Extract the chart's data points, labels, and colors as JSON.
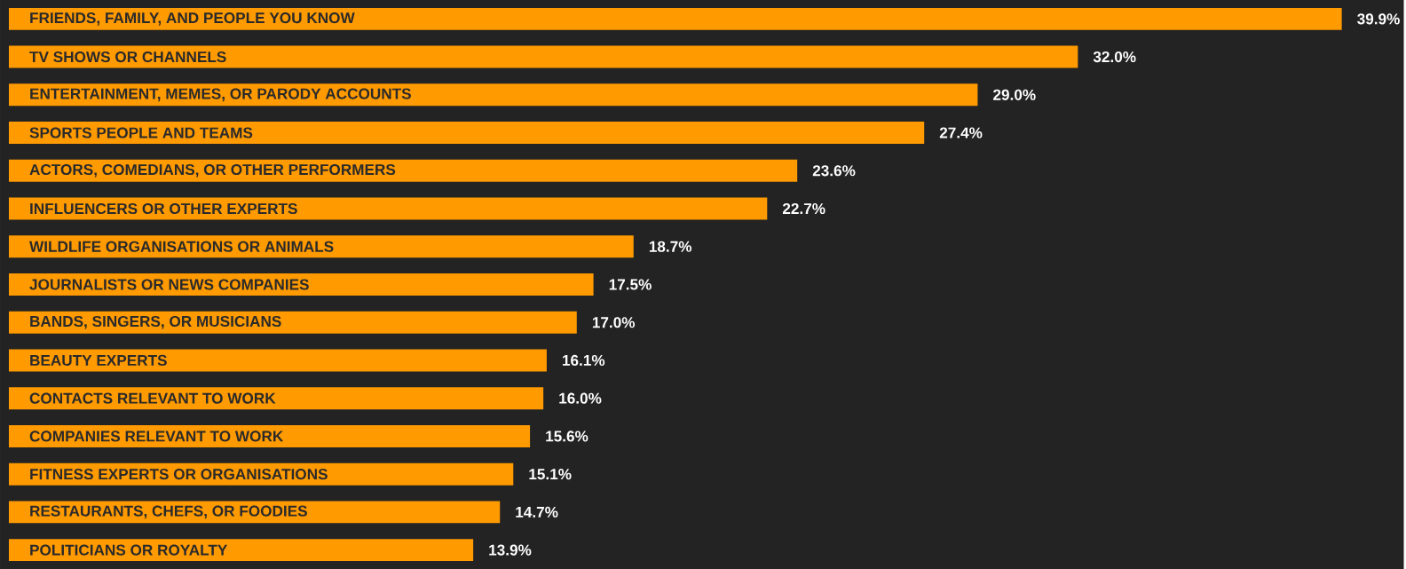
{
  "chart_data": {
    "type": "bar",
    "orientation": "horizontal",
    "color": "#ff9a00",
    "categories": [
      "FRIENDS, FAMILY, AND PEOPLE YOU KNOW",
      "TV SHOWS OR CHANNELS",
      "ENTERTAINMENT, MEMES, OR PARODY ACCOUNTS",
      "SPORTS PEOPLE AND TEAMS",
      "ACTORS, COMEDIANS, OR OTHER PERFORMERS",
      "INFLUENCERS OR OTHER EXPERTS",
      "WILDLIFE ORGANISATIONS OR ANIMALS",
      "JOURNALISTS OR NEWS COMPANIES",
      "BANDS, SINGERS, OR MUSICIANS",
      "BEAUTY EXPERTS",
      "CONTACTS RELEVANT TO WORK",
      "COMPANIES RELEVANT TO WORK",
      "FITNESS EXPERTS OR ORGANISATIONS",
      "RESTAURANTS, CHEFS, OR FOODIES",
      "POLITICIANS OR ROYALTY"
    ],
    "values": [
      39.9,
      32.0,
      29.0,
      27.4,
      23.6,
      22.7,
      18.7,
      17.5,
      17.0,
      16.1,
      16.0,
      15.6,
      15.1,
      14.7,
      13.9
    ],
    "value_labels": [
      "39.9%",
      "32.0%",
      "29.0%",
      "27.4%",
      "23.6%",
      "22.7%",
      "18.7%",
      "17.5%",
      "17.0%",
      "16.1%",
      "16.0%",
      "15.6%",
      "15.1%",
      "14.7%",
      "13.9%"
    ]
  }
}
